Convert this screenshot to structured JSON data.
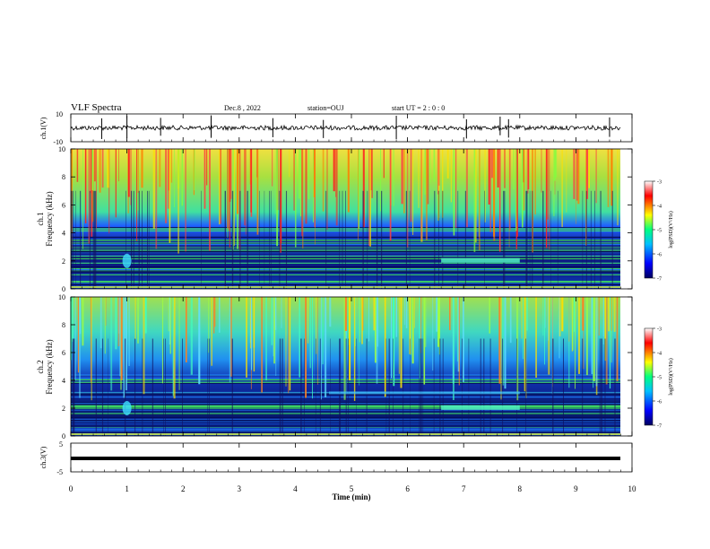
{
  "header": {
    "title": "VLF Spectra",
    "date": "Dec.8 , 2022",
    "station": "station=OUJ",
    "start": "start UT = 2 : 0 : 0"
  },
  "chart_data": [
    {
      "type": "line",
      "panel": "ch1-waveform",
      "ylabel": "ch.1(V)",
      "ylim": [
        -10,
        10
      ],
      "yticks": [
        "10",
        "-10"
      ],
      "xlim": [
        0,
        10
      ],
      "baseline": 0,
      "spikes_min": [
        0.55,
        1.0,
        1.6,
        2.5,
        3.6,
        4.5,
        5.8,
        7.05,
        7.65,
        7.8,
        9.6
      ]
    },
    {
      "type": "heatmap",
      "panel": "ch1-spectrogram",
      "ylabel": "ch.1\nFrequency (kHz)",
      "ylim": [
        0,
        10
      ],
      "yticks": [
        "0",
        "2",
        "4",
        "6",
        "8",
        "10"
      ],
      "xlim": [
        0,
        10
      ],
      "colorbar": {
        "label": "log(PSD)(V²/Hz)",
        "range": [
          -7,
          -3
        ],
        "ticks": [
          "-3",
          "-4",
          "-5",
          "-6",
          "-7"
        ]
      }
    },
    {
      "type": "heatmap",
      "panel": "ch2-spectrogram",
      "ylabel": "ch.2\nFrequency (kHz)",
      "ylim": [
        0,
        10
      ],
      "yticks": [
        "0",
        "2",
        "4",
        "6",
        "8",
        "10"
      ],
      "xlim": [
        0,
        10
      ],
      "colorbar": {
        "label": "log(PSD)(V²/Hz)",
        "range": [
          -7,
          -3
        ],
        "ticks": [
          "-3",
          "-4",
          "-5",
          "-6",
          "-7"
        ]
      }
    },
    {
      "type": "line",
      "panel": "ch3-waveform",
      "ylabel": "ch.3(V)",
      "ylim": [
        -5,
        5
      ],
      "yticks": [
        "5",
        "-5"
      ],
      "xlim": [
        0,
        10
      ],
      "baseline": 0
    }
  ],
  "xaxis": {
    "label": "Time (min)",
    "ticks": [
      "0",
      "1",
      "2",
      "3",
      "4",
      "5",
      "6",
      "7",
      "8",
      "9",
      "10"
    ]
  },
  "colors": {
    "background": "#ffffff",
    "axes": "#000000"
  }
}
